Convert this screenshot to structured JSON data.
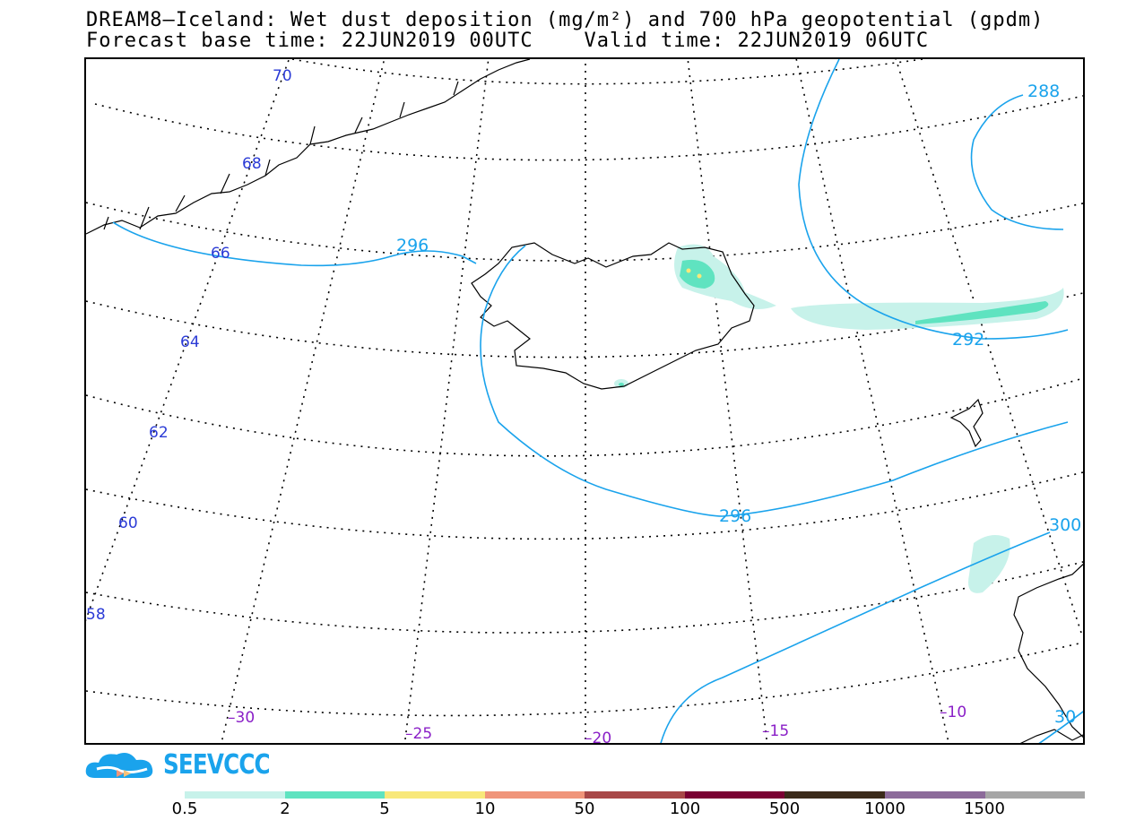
{
  "title_line1": "DREAM8–Iceland: Wet dust deposition (mg/m²) and 700 hPa geopotential (gpdm)",
  "title_line2": "Forecast base time: 22JUN2019 00UTC    Valid time: 22JUN2019 06UTC",
  "latitude_labels": [
    {
      "text": "70"
    },
    {
      "text": "68"
    },
    {
      "text": "66"
    },
    {
      "text": "64"
    },
    {
      "text": "62"
    },
    {
      "text": "60"
    },
    {
      "text": "58"
    }
  ],
  "longitude_labels": [
    {
      "text": "–30"
    },
    {
      "text": "–25"
    },
    {
      "text": "–20"
    },
    {
      "text": "–15"
    },
    {
      "text": "–10"
    }
  ],
  "contour_labels": [
    {
      "text": "296"
    },
    {
      "text": "296"
    },
    {
      "text": "292"
    },
    {
      "text": "288"
    },
    {
      "text": "300"
    },
    {
      "text": "30"
    }
  ],
  "colors": {
    "contour": "#1aa3ec",
    "lat_label": "#2b3bd6",
    "lon_label": "#8a1fc7",
    "dust_light": "#c7f2ea",
    "dust_mid": "#5fe3c0",
    "dust_high": "#f8e87a"
  },
  "logo_text": "SEEVCCC",
  "legend": {
    "tick_labels": [
      "0.5",
      "2",
      "5",
      "10",
      "50",
      "100",
      "500",
      "1000",
      "1500"
    ],
    "colors": [
      "#c7f2ea",
      "#5fe3c0",
      "#f8e87a",
      "#f0957a",
      "#a84848",
      "#7a0033",
      "#3b2a1a",
      "#8c6b9a",
      "#a6a6a6"
    ]
  }
}
